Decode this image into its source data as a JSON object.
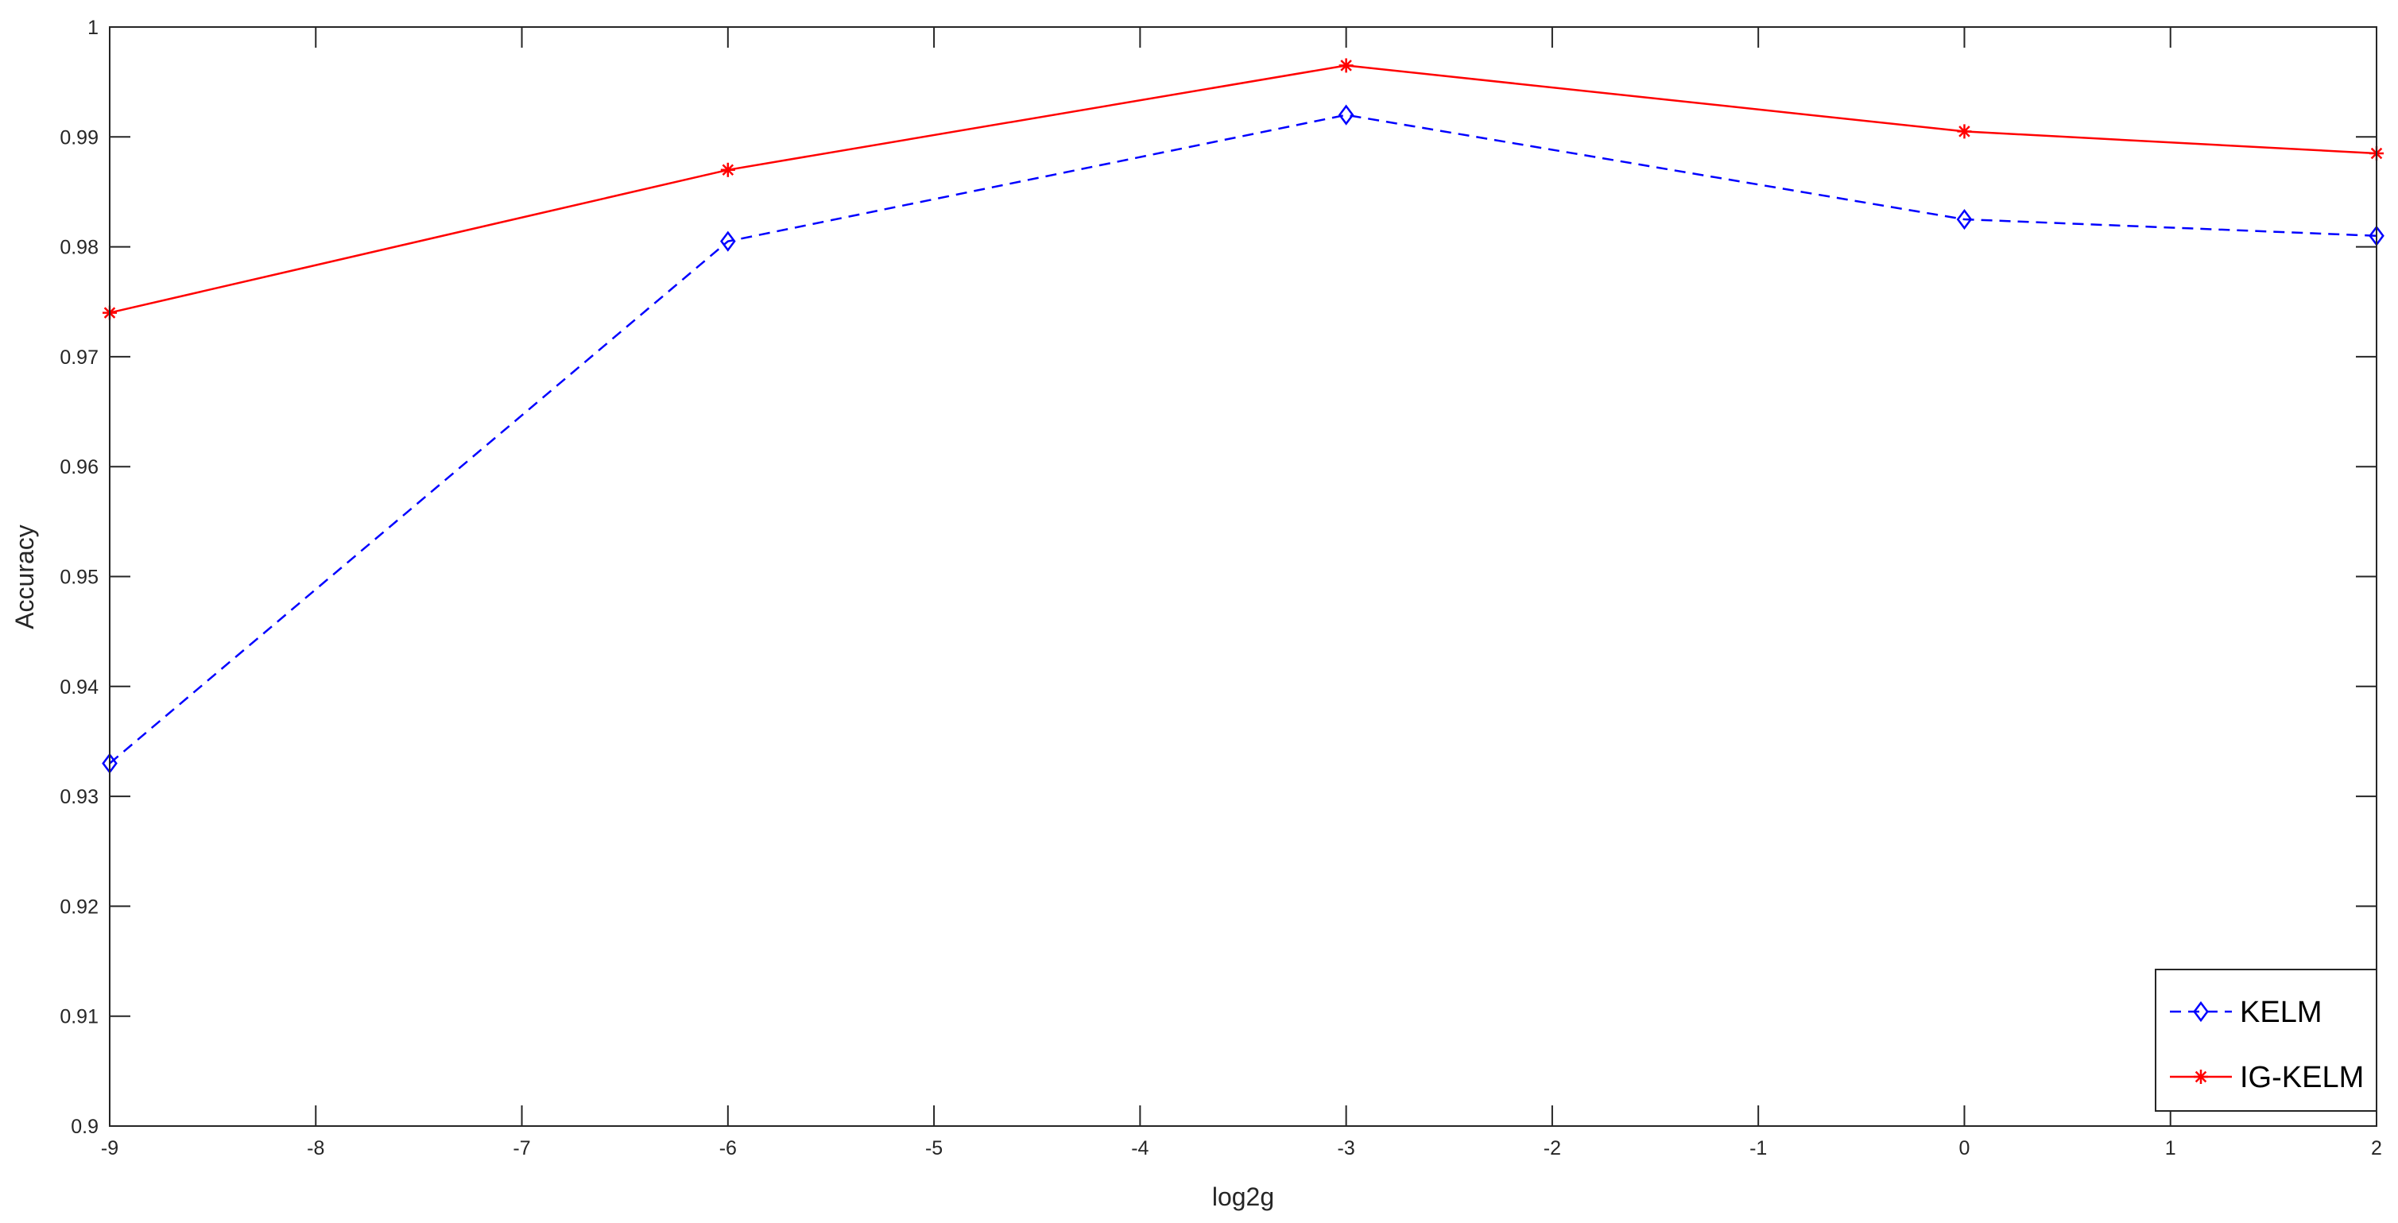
{
  "chart_data": {
    "type": "line",
    "title": "",
    "xlabel": "log2g",
    "ylabel": "Accuracy",
    "xlim": [
      -9,
      2
    ],
    "ylim": [
      0.9,
      1.0
    ],
    "x_ticks": [
      -9,
      -8,
      -7,
      -6,
      -5,
      -4,
      -3,
      -2,
      -1,
      0,
      1,
      2
    ],
    "y_ticks": [
      0.9,
      0.91,
      0.92,
      0.93,
      0.94,
      0.95,
      0.96,
      0.97,
      0.98,
      0.99,
      1
    ],
    "x_tick_labels": [
      "-9",
      "-8",
      "-7",
      "-6",
      "-5",
      "-4",
      "-3",
      "-2",
      "-1",
      "0",
      "1",
      "2"
    ],
    "y_tick_labels": [
      "0.9",
      "0.91",
      "0.92",
      "0.93",
      "0.94",
      "0.95",
      "0.96",
      "0.97",
      "0.98",
      "0.99",
      "1"
    ],
    "grid": false,
    "legend_position": "bottom-right",
    "series": [
      {
        "name": "KELM",
        "x": [
          -9,
          -6,
          -3,
          0,
          2
        ],
        "y": [
          0.933,
          0.9805,
          0.992,
          0.9825,
          0.981
        ],
        "color": "#0000ff",
        "line_style": "dashed",
        "marker": "diamond"
      },
      {
        "name": "IG-KELM",
        "x": [
          -9,
          -6,
          -3,
          0,
          2
        ],
        "y": [
          0.974,
          0.987,
          0.9965,
          0.9905,
          0.9885
        ],
        "color": "#ff0000",
        "line_style": "solid",
        "marker": "asterisk"
      }
    ]
  }
}
